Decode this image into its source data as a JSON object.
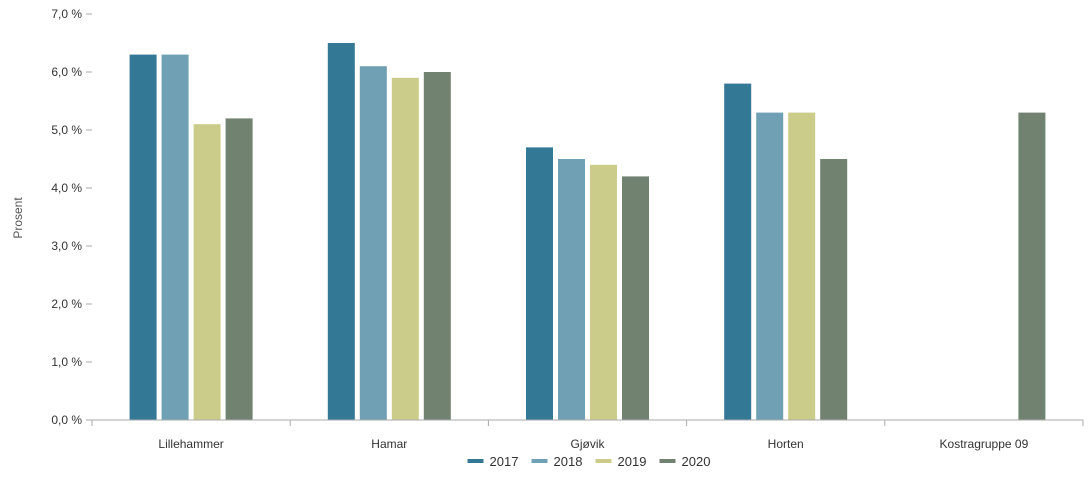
{
  "chart_data": {
    "type": "bar",
    "title": "",
    "xlabel": "",
    "ylabel": "Prosent",
    "ylim": [
      0,
      7
    ],
    "yticks": [
      "0,0 %",
      "1,0 %",
      "2,0 %",
      "3,0 %",
      "4,0 %",
      "5,0 %",
      "6,0 %",
      "7,0 %"
    ],
    "grid": false,
    "legend_position": "bottom",
    "categories": [
      "Lillehammer",
      "Hamar",
      "Gjøvik",
      "Horten",
      "Kostragruppe 09"
    ],
    "series": [
      {
        "name": "2017",
        "color": "#337895",
        "values": [
          6.3,
          6.5,
          4.7,
          5.8,
          null
        ]
      },
      {
        "name": "2018",
        "color": "#6fa0b3",
        "values": [
          6.3,
          6.1,
          4.5,
          5.3,
          null
        ]
      },
      {
        "name": "2019",
        "color": "#cccc8a",
        "values": [
          5.1,
          5.9,
          4.4,
          5.3,
          null
        ]
      },
      {
        "name": "2020",
        "color": "#718270",
        "values": [
          5.2,
          6.0,
          4.2,
          4.5,
          5.3
        ]
      }
    ]
  }
}
